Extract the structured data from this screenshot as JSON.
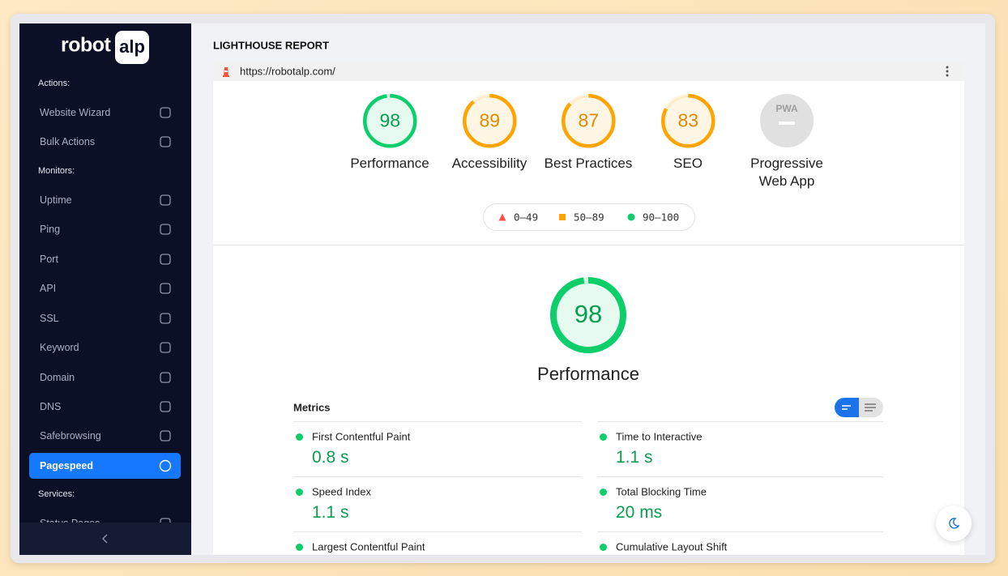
{
  "sidebar": {
    "logo": {
      "text": "robot",
      "badge": "alp"
    },
    "sections": [
      {
        "title": "Actions:",
        "items": [
          {
            "label": "Website Wizard"
          },
          {
            "label": "Bulk Actions"
          }
        ]
      },
      {
        "title": "Monitors:",
        "items": [
          {
            "label": "Uptime"
          },
          {
            "label": "Ping"
          },
          {
            "label": "Port"
          },
          {
            "label": "API"
          },
          {
            "label": "SSL"
          },
          {
            "label": "Keyword"
          },
          {
            "label": "Domain"
          },
          {
            "label": "DNS"
          },
          {
            "label": "Safebrowsing"
          },
          {
            "label": "Pagespeed",
            "active": true
          }
        ]
      },
      {
        "title": "Services:",
        "items": [
          {
            "label": "Status Pages"
          }
        ]
      }
    ]
  },
  "report": {
    "title": "LIGHTHOUSE REPORT",
    "url": "https://robotalp.com/",
    "categories": [
      {
        "label": "Performance",
        "score": 98,
        "color": "#0cce6b"
      },
      {
        "label": "Accessibility",
        "score": 89,
        "color": "#ffa400"
      },
      {
        "label": "Best Practices",
        "score": 87,
        "color": "#ffa400"
      },
      {
        "label": "SEO",
        "score": 83,
        "color": "#ffa400"
      },
      {
        "label": "Progressive Web App",
        "badge": "PWA"
      }
    ],
    "legend": [
      {
        "label": "0–49",
        "shape": "triangle",
        "color": "#ff4e42"
      },
      {
        "label": "50–89",
        "shape": "square",
        "color": "#ffa400"
      },
      {
        "label": "90–100",
        "shape": "circle",
        "color": "#0cce6b"
      }
    ],
    "featured": {
      "label": "Performance",
      "score": 98,
      "color": "#0cce6b"
    },
    "metrics": {
      "title": "Metrics",
      "items": [
        {
          "name": "First Contentful Paint",
          "value": "0.8 s"
        },
        {
          "name": "Time to Interactive",
          "value": "1.1 s"
        },
        {
          "name": "Speed Index",
          "value": "1.1 s"
        },
        {
          "name": "Total Blocking Time",
          "value": "20 ms"
        },
        {
          "name": "Largest Contentful Paint"
        },
        {
          "name": "Cumulative Layout Shift"
        }
      ]
    }
  }
}
